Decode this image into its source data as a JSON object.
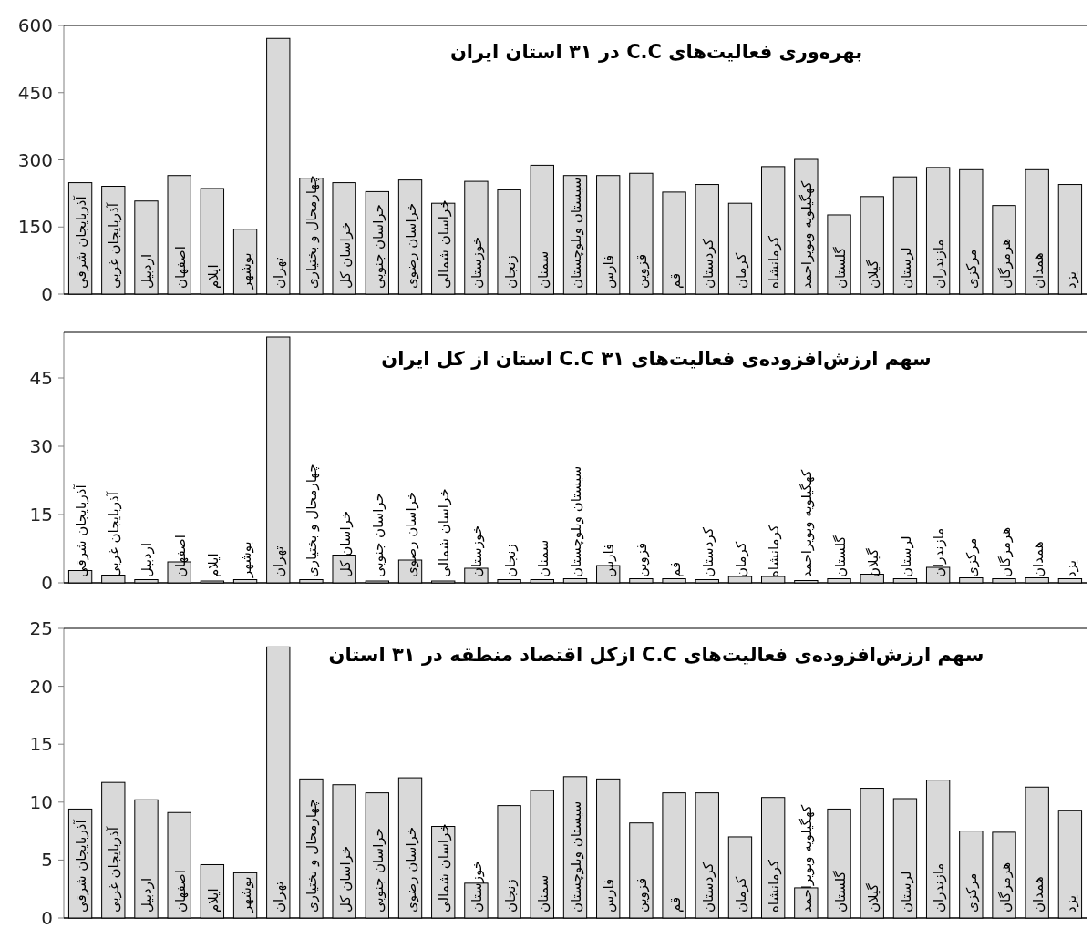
{
  "chart_data": [
    {
      "type": "bar",
      "title": "بهره‌وری فعالیت‌های C.C در ۳۱ استان ایران",
      "categories": [
        "آذربایجان شرقی",
        "آذربایجان غربی",
        "اردبیل",
        "اصفهان",
        "ایلام",
        "بوشهر",
        "تهران",
        "چهارمحال و بختیاری",
        "خراسان کل",
        "خراسان جنوبی",
        "خراسان رضوی",
        "خراسان شمالی",
        "خوزستان",
        "زنجان",
        "سمنان",
        "سیستان وبلوچستان",
        "فارس",
        "قزوین",
        "قم",
        "کردستان",
        "کرمان",
        "کرمانشاه",
        "کهگیلویه وبویراحمد",
        "گلستان",
        "گیلان",
        "لرستان",
        "مازندران",
        "مرکزی",
        "هرمزگان",
        "همدان",
        "یزد"
      ],
      "values": [
        249,
        241,
        208,
        265,
        236,
        145,
        571,
        259,
        249,
        229,
        255,
        203,
        252,
        233,
        288,
        265,
        265,
        270,
        228,
        245,
        203,
        285,
        301,
        177,
        218,
        262,
        283,
        278,
        198,
        278,
        245
      ],
      "color": "#d9d9d9",
      "ylim": [
        0,
        600
      ],
      "yticks": [
        0,
        150,
        300,
        450,
        600
      ],
      "grid": false
    },
    {
      "type": "bar",
      "title": "سهم ارزش‌افزوده‌ی فعالیت‌های C.C ۳۱ استان از کل ایران",
      "categories": [
        "آذربایجان شرقی",
        "آذربایجان غربی",
        "اردبیل",
        "اصفهان",
        "ایلام",
        "بوشهر",
        "تهران",
        "چهارمحال و بختیاری",
        "خراسان کل",
        "خراسان جنوبی",
        "خراسان رضوی",
        "خراسان شمالی",
        "خوزستان",
        "زنجان",
        "سمنان",
        "سیستان وبلوچستان",
        "فارس",
        "قزوین",
        "قم",
        "کردستان",
        "کرمان",
        "کرمانشاه",
        "کهگیلویه وبویراحمد",
        "گلستان",
        "گیلان",
        "لرستان",
        "مازندران",
        "مرکزی",
        "هرمزگان",
        "همدان",
        "یزد"
      ],
      "values": [
        2.7,
        1.7,
        0.7,
        4.6,
        0.4,
        0.7,
        54,
        0.7,
        6.1,
        0.4,
        5.0,
        0.4,
        3.2,
        0.7,
        0.7,
        0.9,
        3.8,
        0.9,
        0.9,
        0.7,
        1.4,
        1.4,
        0.5,
        0.9,
        1.9,
        0.9,
        3.4,
        1.1,
        0.9,
        1.1,
        0.9
      ],
      "color": "#d9d9d9",
      "ylim": [
        0,
        55
      ],
      "yticks": [
        0,
        15,
        30,
        45
      ],
      "grid": false
    },
    {
      "type": "bar",
      "title": "سهم ارزش‌افزوده‌ی فعالیت‌های C.C ازکل اقتصاد منطقه در ۳۱ استان",
      "categories": [
        "آذربایجان شرقی",
        "آذربایجان غربی",
        "اردبیل",
        "اصفهان",
        "ایلام",
        "بوشهر",
        "تهران",
        "چهارمحال و بختیاری",
        "خراسان کل",
        "خراسان جنوبی",
        "خراسان رضوی",
        "خراسان شمالی",
        "خوزستان",
        "زنجان",
        "سمنان",
        "سیستان وبلوچستان",
        "فارس",
        "قزوین",
        "قم",
        "کردستان",
        "کرمان",
        "کرمانشاه",
        "کهگیلویه وبویراحمد",
        "گلستان",
        "گیلان",
        "لرستان",
        "مازندران",
        "مرکزی",
        "هرمزگان",
        "همدان",
        "یزد"
      ],
      "values": [
        9.4,
        11.7,
        10.2,
        9.1,
        4.6,
        3.9,
        23.4,
        12.0,
        11.5,
        10.8,
        12.1,
        7.9,
        3.0,
        9.7,
        11.0,
        12.2,
        12.0,
        8.2,
        10.8,
        10.8,
        7.0,
        10.4,
        2.6,
        9.4,
        11.2,
        10.3,
        11.9,
        7.5,
        7.4,
        11.3,
        9.3
      ],
      "color": "#d9d9d9",
      "ylim": [
        0,
        25
      ],
      "yticks": [
        0,
        5,
        10,
        15,
        20,
        25
      ],
      "grid": false
    }
  ]
}
